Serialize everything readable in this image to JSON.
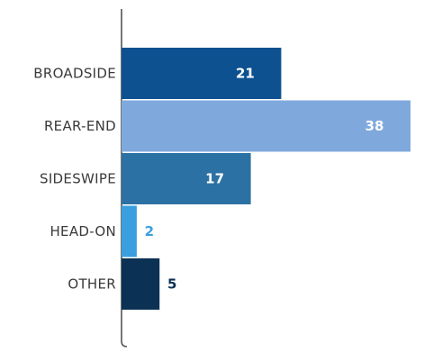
{
  "chart_data": {
    "type": "bar",
    "orientation": "horizontal",
    "categories": [
      "BROADSIDE",
      "REAR-END",
      "SIDESWIPE",
      "HEAD-ON",
      "OTHER"
    ],
    "values": [
      21,
      38,
      17,
      2,
      5
    ],
    "colors": [
      "#0d5190",
      "#7fa9dc",
      "#2c71a3",
      "#3a9fdf",
      "#0b3154"
    ],
    "value_label_colors": [
      "#ffffff",
      "#ffffff",
      "#ffffff",
      "#3a9fdf",
      "#0b3154"
    ],
    "title": "",
    "xlabel": "",
    "ylabel": "",
    "xlim": [
      0,
      38
    ],
    "grid": false,
    "legend": "none"
  }
}
